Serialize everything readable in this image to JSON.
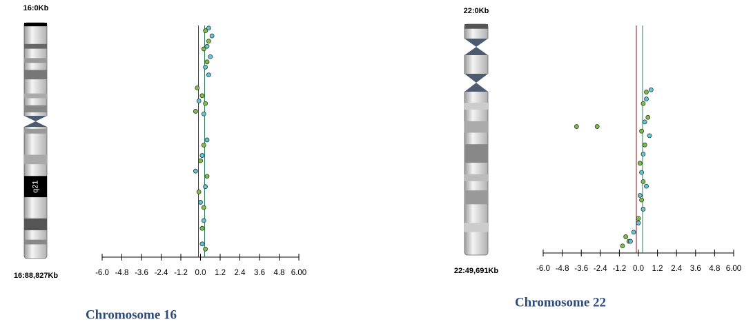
{
  "chart_data": [
    {
      "type": "scatter",
      "title": "Chromosome 16",
      "band_label": "q21",
      "xlim": [
        -6,
        6
      ],
      "xticks": [
        {
          "value": -6,
          "label": "-6.0"
        },
        {
          "value": -4.8,
          "label": "-4.8"
        },
        {
          "value": -3.6,
          "label": "-3.6"
        },
        {
          "value": -2.4,
          "label": "-2.4"
        },
        {
          "value": -1.2,
          "label": "-1.2"
        },
        {
          "value": 0,
          "label": "0.0"
        },
        {
          "value": 1.2,
          "label": "1.2"
        },
        {
          "value": 2.4,
          "label": "2.4"
        },
        {
          "value": 3.6,
          "label": "3.6"
        },
        {
          "value": 4.8,
          "label": "4.8"
        },
        {
          "value": 6,
          "label": "6.00"
        }
      ],
      "ylim": [
        0,
        88827
      ],
      "yticks": [
        {
          "value": 0,
          "label": "16:0Kb"
        },
        {
          "value": 88827,
          "label": "16:88,827Kb"
        }
      ],
      "series": [
        {
          "color": "#7dc142",
          "x": [
            0.3,
            0.5,
            0.2,
            0.4,
            -0.2,
            0.1,
            0.3,
            -0.3,
            0.2,
            0.0,
            0.4,
            -0.1,
            0.2,
            0.1,
            0.3
          ],
          "values": [
            2000,
            6000,
            9000,
            14000,
            24000,
            27000,
            30000,
            33000,
            46000,
            52000,
            58000,
            64000,
            70000,
            78000,
            86000
          ]
        },
        {
          "color": "#5cc9d6",
          "x": [
            0.5,
            0.7,
            0.4,
            0.6,
            0.3,
            0.5,
            -0.1,
            0.2,
            0.4,
            0.1,
            -0.3,
            0.3,
            0.0,
            0.2,
            0.1
          ],
          "values": [
            1000,
            4000,
            8000,
            12000,
            16000,
            19000,
            29000,
            34000,
            44000,
            50000,
            56000,
            62000,
            68000,
            75000,
            84000
          ]
        }
      ]
    },
    {
      "type": "scatter",
      "title": "Chromosome 22",
      "xlim": [
        -6,
        6
      ],
      "xticks": [
        {
          "value": -6,
          "label": "-6.0"
        },
        {
          "value": -4.8,
          "label": "-4.8"
        },
        {
          "value": -3.6,
          "label": "-3.6"
        },
        {
          "value": -2.4,
          "label": "-2.4"
        },
        {
          "value": -1.2,
          "label": "-1.2"
        },
        {
          "value": 0,
          "label": "0.0"
        },
        {
          "value": 1.2,
          "label": "1.2"
        },
        {
          "value": 2.4,
          "label": "2.4"
        },
        {
          "value": 3.6,
          "label": "3.6"
        },
        {
          "value": 4.8,
          "label": "4.8"
        },
        {
          "value": 6,
          "label": "6.00"
        }
      ],
      "ylim": [
        0,
        49691
      ],
      "yticks": [
        {
          "value": 0,
          "label": "22:0Kb"
        },
        {
          "value": 49691,
          "label": "22:49,691Kb"
        }
      ],
      "series": [
        {
          "color": "#7dc142",
          "x": [
            0.5,
            0.3,
            0.6,
            0.2,
            0.4,
            0.1,
            0.3,
            0.2,
            0.0,
            -0.8,
            -1.0,
            -0.6,
            -3.9,
            -2.6
          ],
          "values": [
            14500,
            17000,
            20000,
            23000,
            26000,
            30000,
            34000,
            38000,
            42000,
            46000,
            48000,
            47000,
            22000,
            22000
          ]
        },
        {
          "color": "#5cc9d6",
          "x": [
            0.8,
            0.5,
            0.4,
            0.7,
            0.3,
            0.2,
            0.5,
            0.1,
            0.3,
            0.0,
            -0.5,
            -0.3
          ],
          "values": [
            14000,
            16000,
            21000,
            24000,
            28000,
            32000,
            35000,
            37000,
            40000,
            43000,
            47000,
            45000
          ]
        }
      ]
    }
  ]
}
